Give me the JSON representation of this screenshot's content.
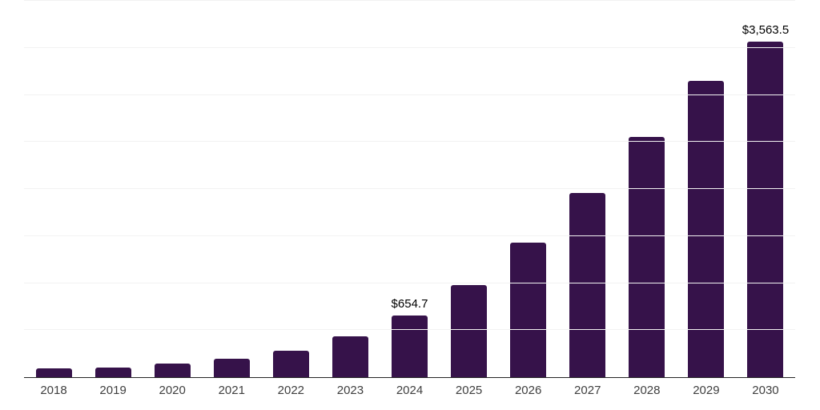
{
  "chart_data": {
    "type": "bar",
    "title": "",
    "xlabel": "",
    "ylabel": "",
    "categories": [
      "2018",
      "2019",
      "2020",
      "2021",
      "2022",
      "2023",
      "2024",
      "2025",
      "2026",
      "2027",
      "2028",
      "2029",
      "2030"
    ],
    "values": [
      90,
      105,
      148,
      200,
      285,
      430,
      654.7,
      983,
      1426,
      1954,
      2550,
      3147,
      3563.5
    ],
    "point_labels": [
      null,
      null,
      null,
      null,
      null,
      null,
      "$654.7",
      null,
      null,
      null,
      null,
      null,
      "$3,563.5"
    ],
    "ylim": [
      0,
      4000
    ],
    "gridline_step": 500,
    "grid": true,
    "y_axis_tick_labels_visible": false,
    "legend": "none",
    "colors": {
      "bar_fill": "#36124a",
      "gridline": "#f2f2f2",
      "axis_line": "#262626",
      "tick_label": "#3f3f3f",
      "value_label": "#000000",
      "background": "#ffffff"
    }
  }
}
